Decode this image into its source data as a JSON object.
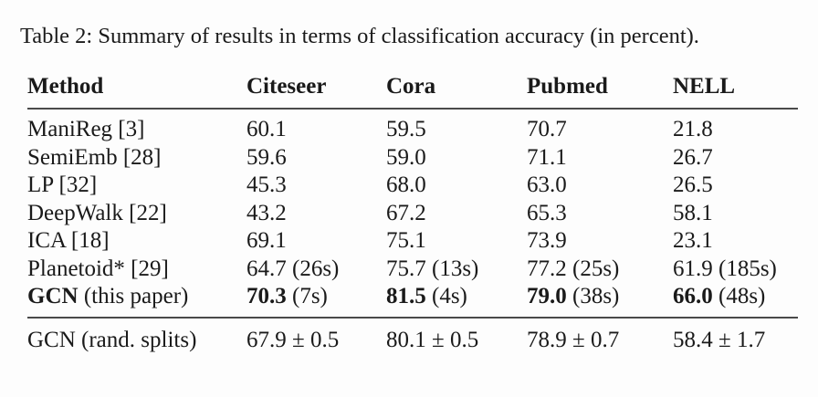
{
  "caption": "Table 2: Summary of results in terms of classification accuracy (in percent).",
  "table": {
    "headers": [
      "Method",
      "Citeseer",
      "Cora",
      "Pubmed",
      "NELL"
    ],
    "rows": [
      {
        "method": {
          "b": "",
          "r": "ManiReg [3]"
        },
        "citeseer": {
          "b": "",
          "r": "60.1"
        },
        "cora": {
          "b": "",
          "r": "59.5"
        },
        "pubmed": {
          "b": "",
          "r": "70.7"
        },
        "nell": {
          "b": "",
          "r": "21.8"
        }
      },
      {
        "method": {
          "b": "",
          "r": "SemiEmb [28]"
        },
        "citeseer": {
          "b": "",
          "r": "59.6"
        },
        "cora": {
          "b": "",
          "r": "59.0"
        },
        "pubmed": {
          "b": "",
          "r": "71.1"
        },
        "nell": {
          "b": "",
          "r": "26.7"
        }
      },
      {
        "method": {
          "b": "",
          "r": "LP [32]"
        },
        "citeseer": {
          "b": "",
          "r": "45.3"
        },
        "cora": {
          "b": "",
          "r": "68.0"
        },
        "pubmed": {
          "b": "",
          "r": "63.0"
        },
        "nell": {
          "b": "",
          "r": "26.5"
        }
      },
      {
        "method": {
          "b": "",
          "r": "DeepWalk [22]"
        },
        "citeseer": {
          "b": "",
          "r": "43.2"
        },
        "cora": {
          "b": "",
          "r": "67.2"
        },
        "pubmed": {
          "b": "",
          "r": "65.3"
        },
        "nell": {
          "b": "",
          "r": "58.1"
        }
      },
      {
        "method": {
          "b": "",
          "r": "ICA [18]"
        },
        "citeseer": {
          "b": "",
          "r": "69.1"
        },
        "cora": {
          "b": "",
          "r": "75.1"
        },
        "pubmed": {
          "b": "",
          "r": "73.9"
        },
        "nell": {
          "b": "",
          "r": "23.1"
        }
      },
      {
        "method": {
          "b": "",
          "r": "Planetoid* [29]"
        },
        "citeseer": {
          "b": "",
          "r": "64.7 (26s)"
        },
        "cora": {
          "b": "",
          "r": "75.7 (13s)"
        },
        "pubmed": {
          "b": "",
          "r": "77.2 (25s)"
        },
        "nell": {
          "b": "",
          "r": "61.9 (185s)"
        }
      },
      {
        "method": {
          "b": "GCN",
          "r": " (this paper)"
        },
        "citeseer": {
          "b": "70.3",
          "r": " (7s)"
        },
        "cora": {
          "b": "81.5",
          "r": " (4s)"
        },
        "pubmed": {
          "b": "79.0",
          "r": " (38s)"
        },
        "nell": {
          "b": "66.0",
          "r": " (48s)"
        }
      },
      {
        "method": {
          "b": "",
          "r": "GCN (rand. splits)"
        },
        "citeseer": {
          "b": "",
          "r": "67.9 ± 0.5"
        },
        "cora": {
          "b": "",
          "r": "80.1 ± 0.5"
        },
        "pubmed": {
          "b": "",
          "r": "78.9 ± 0.7"
        },
        "nell": {
          "b": "",
          "r": "58.4 ± 1.7"
        }
      }
    ],
    "rule_color": "#4a4a4a",
    "text_color": "#1a1a1a",
    "background_color": "#fdfdfd"
  }
}
